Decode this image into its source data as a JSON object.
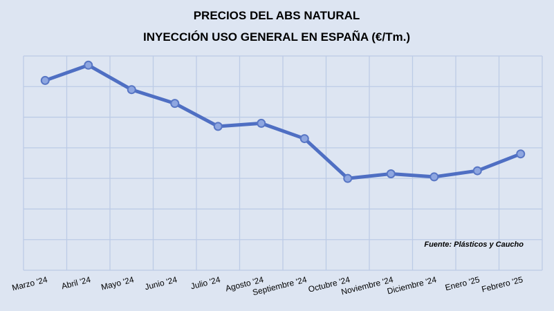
{
  "chart_data": {
    "type": "line",
    "title": [
      "PRECIOS DEL ABS NATURAL",
      "INYECCIÓN USO GENERAL EN ESPAÑA (€/Tm.)"
    ],
    "categories": [
      "Marzo '24",
      "Abril '24",
      "Mayo '24",
      "Junio '24",
      "Julio '24",
      "Agosto '24",
      "Septiembre '24",
      "Octubre '24",
      "Noviembre '24",
      "Diciembre '24",
      "Enero '25",
      "Febrero '25"
    ],
    "series": [
      {
        "values": [
          6.2,
          6.7,
          5.9,
          5.45,
          4.7,
          4.8,
          4.3,
          3.0,
          3.15,
          3.05,
          3.25,
          3.8
        ]
      }
    ],
    "ylim": [
      0,
      7
    ],
    "y_ticks_shown": false,
    "grid": true,
    "legend": "none",
    "annotation": "Fuente: Plásticos y Caucho",
    "colors": {
      "line": "#4f6fc3",
      "marker_fill": "#8ea6e0",
      "grid": "#bccbe6",
      "background": "#dde5f2"
    }
  }
}
